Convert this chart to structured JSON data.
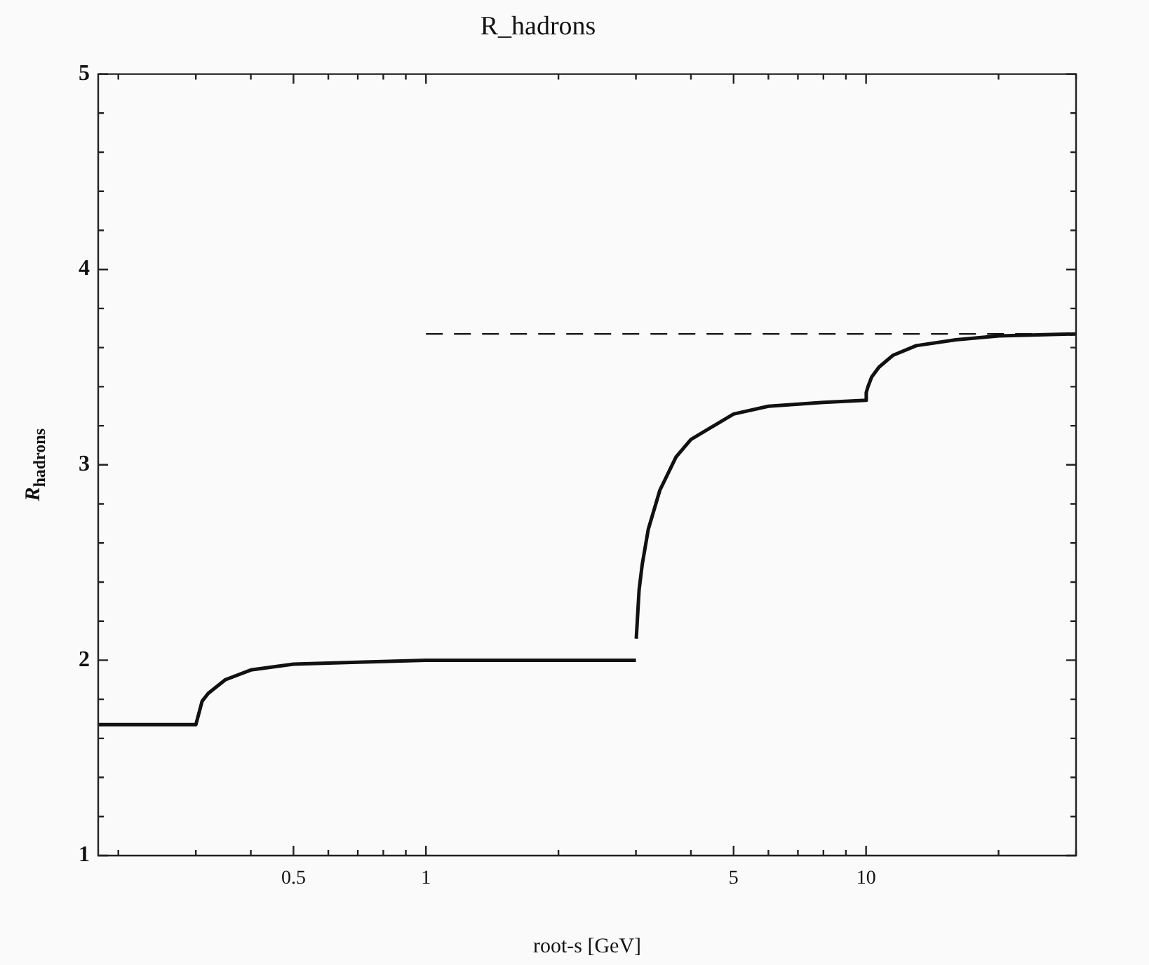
{
  "chart_data": {
    "type": "line",
    "title": "R_hadrons",
    "xlabel": "root-s [GeV]",
    "ylabel": "R$_{hadrons}$",
    "log": "x",
    "xlim": [
      0.18,
      30
    ],
    "ylim": [
      1,
      5
    ],
    "grid": false,
    "legend": false,
    "marker": "none",
    "xticks": [
      {
        "value": 0.2,
        "label": null
      },
      {
        "value": 0.3,
        "label": null
      },
      {
        "value": 0.4,
        "label": null
      },
      0.5,
      {
        "value": 0.6,
        "label": null
      },
      {
        "value": 0.7,
        "label": null
      },
      {
        "value": 0.8,
        "label": null
      },
      {
        "value": 0.9,
        "label": null
      },
      1,
      {
        "value": 2,
        "label": null
      },
      {
        "value": 3,
        "label": null
      },
      {
        "value": 4,
        "label": null
      },
      5,
      {
        "value": 6,
        "label": null
      },
      {
        "value": 7,
        "label": null
      },
      {
        "value": 8,
        "label": null
      },
      {
        "value": 9,
        "label": null
      },
      10,
      {
        "value": 20,
        "label": null
      },
      {
        "value": 30,
        "label": null
      }
    ],
    "yticks": [
      1,
      {
        "value": 1.2,
        "label": null
      },
      {
        "value": 1.4,
        "label": null
      },
      {
        "value": 1.6,
        "label": null
      },
      {
        "value": 1.8,
        "label": null
      },
      2,
      {
        "value": 2.2,
        "label": null
      },
      {
        "value": 2.4,
        "label": null
      },
      {
        "value": 2.6,
        "label": null
      },
      {
        "value": 2.8,
        "label": null
      },
      3,
      {
        "value": 3.2,
        "label": null
      },
      {
        "value": 3.4,
        "label": null
      },
      {
        "value": 3.6,
        "label": null
      },
      {
        "value": 3.8,
        "label": null
      },
      4,
      {
        "value": 4.2,
        "label": null
      },
      {
        "value": 4.4,
        "label": null
      },
      {
        "value": 4.6,
        "label": null
      },
      {
        "value": 4.8,
        "label": null
      },
      5
    ],
    "series": [
      {
        "color": "#111111",
        "line_style": "solid",
        "x": [
          0.18,
          0.3,
          0.3,
          0.31,
          0.32,
          0.35,
          0.4,
          0.5,
          0.7,
          1,
          2,
          3
        ],
        "values": [
          1.67,
          1.67,
          1.67,
          1.79,
          1.83,
          1.9,
          1.95,
          1.98,
          1.99,
          2,
          2,
          2
        ]
      },
      {
        "color": "#111111",
        "line_style": "solid",
        "x": [
          3.005,
          3.05,
          3.1,
          3.2,
          3.4,
          3.7,
          4,
          5,
          6,
          8,
          10,
          10,
          10.02,
          10.1,
          10.3,
          10.7,
          11.5,
          13,
          16,
          20,
          30
        ],
        "values": [
          2.11,
          2.36,
          2.49,
          2.67,
          2.87,
          3.04,
          3.13,
          3.26,
          3.3,
          3.32,
          3.33,
          3.34,
          3.37,
          3.4,
          3.45,
          3.5,
          3.56,
          3.61,
          3.64,
          3.66,
          3.67
        ]
      },
      {
        "color": "#111111",
        "line_style": "dashed",
        "x": [
          1,
          30
        ],
        "values": [
          3.67,
          3.67
        ]
      }
    ]
  }
}
